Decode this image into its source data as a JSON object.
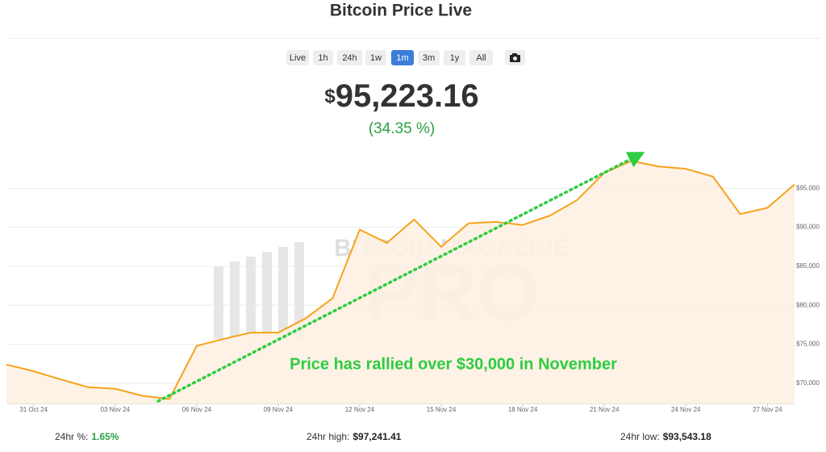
{
  "header": {
    "title": "Bitcoin Price Live"
  },
  "range_buttons": [
    "Live",
    "1h",
    "24h",
    "1w",
    "1m",
    "3m",
    "1y",
    "All"
  ],
  "active_button": 4,
  "price": {
    "currency": "$",
    "amount": "95,223.16",
    "change": "(34.35 %)"
  },
  "watermark": {
    "top": "BITCOIN MAGAZINE",
    "bottom": "PRO"
  },
  "stats": [
    {
      "label": "24hr %:",
      "value": "1.65%"
    },
    {
      "label": "24hr high:",
      "value": "$97,241.41"
    },
    {
      "label": "24hr low:",
      "value": "$93,543.18"
    }
  ],
  "chart_data": {
    "type": "line",
    "annotation": "Price has rallied over $30,000 in November",
    "x": [
      "2024-10-30",
      "2024-10-31",
      "2024-11-01",
      "2024-11-02",
      "2024-11-03",
      "2024-11-04",
      "2024-11-05",
      "2024-11-06",
      "2024-11-07",
      "2024-11-08",
      "2024-11-09",
      "2024-11-10",
      "2024-11-11",
      "2024-11-12",
      "2024-11-13",
      "2024-11-14",
      "2024-11-15",
      "2024-11-16",
      "2024-11-17",
      "2024-11-18",
      "2024-11-19",
      "2024-11-20",
      "2024-11-21",
      "2024-11-22",
      "2024-11-23",
      "2024-11-24",
      "2024-11-25",
      "2024-11-26",
      "2024-11-27",
      "2024-11-28"
    ],
    "series": [
      {
        "name": "BTC price",
        "color": "#f7a21b",
        "values": [
          72400,
          71550,
          70500,
          69500,
          69300,
          68400,
          68000,
          74800,
          75700,
          76500,
          76500,
          78300,
          80900,
          89700,
          88000,
          91000,
          87500,
          90500,
          90700,
          90300,
          91500,
          93500,
          97000,
          98500,
          97800,
          97500,
          96500,
          91700,
          92500,
          95500
        ]
      }
    ],
    "xlim": [
      "2024-10-30",
      "2024-11-28"
    ],
    "xticks": [
      {
        "value": "2024-10-31",
        "label": "31 Oct 24"
      },
      {
        "value": "2024-11-03",
        "label": "03 Nov 24"
      },
      {
        "value": "2024-11-06",
        "label": "06 Nov 24"
      },
      {
        "value": "2024-11-09",
        "label": "09 Nov 24"
      },
      {
        "value": "2024-11-12",
        "label": "12 Nov 24"
      },
      {
        "value": "2024-11-15",
        "label": "15 Nov 24"
      },
      {
        "value": "2024-11-18",
        "label": "18 Nov 24"
      },
      {
        "value": "2024-11-21",
        "label": "21 Nov 24"
      },
      {
        "value": "2024-11-24",
        "label": "24 Nov 24"
      },
      {
        "value": "2024-11-27",
        "label": "27 Nov 24"
      }
    ],
    "ylim": [
      67400,
      100000
    ],
    "yticks": [
      {
        "value": 70000,
        "label": "$70,000"
      },
      {
        "value": 75000,
        "label": "$75,000"
      },
      {
        "value": 80000,
        "label": "$80,000"
      },
      {
        "value": 85000,
        "label": "$85,000"
      },
      {
        "value": 90000,
        "label": "$90,000"
      },
      {
        "value": 95000,
        "label": "$95,000"
      }
    ],
    "grid": true,
    "area_color": "#fdf1e2"
  }
}
